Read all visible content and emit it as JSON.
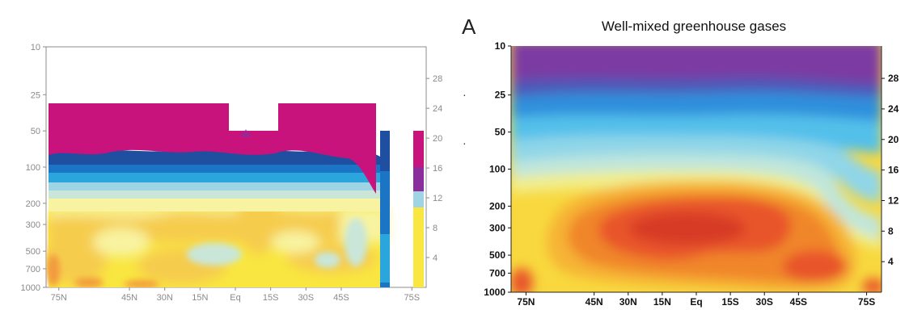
{
  "chart_data": [
    {
      "type": "heatmap",
      "panel": "left",
      "title": "",
      "xlabel": "",
      "ylabel": "",
      "x_ticks": [
        "75N",
        "45N",
        "30N",
        "15N",
        "Eq",
        "15S",
        "30S",
        "45S",
        "75S"
      ],
      "x_tick_lat": [
        75,
        45,
        30,
        15,
        0,
        -15,
        -30,
        -45,
        -75
      ],
      "y_ticks_left": [
        "10",
        "25",
        "50",
        "100",
        "200",
        "300",
        "500",
        "700",
        "1000"
      ],
      "y_tick_hpa": [
        10,
        25,
        50,
        100,
        200,
        300,
        500,
        700,
        1000
      ],
      "y_ticks_right": [
        "28",
        "24",
        "20",
        "16",
        "12",
        "8",
        "4"
      ],
      "y_right_km": [
        28,
        24,
        20,
        16,
        12,
        8,
        4
      ],
      "xlim": [
        78,
        -78
      ],
      "ylim_hpa": [
        10,
        1000
      ],
      "y_scale": "log",
      "colors": {
        "magenta": "#c8137d",
        "purple": "#8a2e9e",
        "navy": "#1f4fa0",
        "blue": "#1c74c4",
        "sky": "#2aa6dc",
        "light_blue": "#9fd4e4",
        "pale_cyan": "#c9e6d9",
        "pale_yellow": "#f8f3a0",
        "yellow": "#f9e640",
        "gold": "#f6cc4d",
        "orange": "#f29a3c"
      }
    },
    {
      "type": "heatmap",
      "panel": "right",
      "panel_label": "A",
      "title": "Well-mixed greenhouse gases",
      "xlabel": "",
      "ylabel": "",
      "x_ticks": [
        "75N",
        "45N",
        "30N",
        "15N",
        "Eq",
        "15S",
        "30S",
        "45S",
        "75S"
      ],
      "x_tick_lat": [
        75,
        45,
        30,
        15,
        0,
        -15,
        -30,
        -45,
        -75
      ],
      "y_ticks_left": [
        "10",
        "25",
        "50",
        "100",
        "200",
        "300",
        "500",
        "700",
        "1000"
      ],
      "y_tick_hpa": [
        10,
        25,
        50,
        100,
        200,
        300,
        500,
        700,
        1000
      ],
      "y_ticks_right": [
        "28",
        "24",
        "20",
        "16",
        "12",
        "8",
        "4"
      ],
      "y_right_km": [
        28,
        24,
        20,
        16,
        12,
        8,
        4
      ],
      "xlim": [
        78,
        -78
      ],
      "ylim_hpa": [
        10,
        1000
      ],
      "y_scale": "log",
      "colors": {
        "purple": "#7c3aa2",
        "indigo": "#4d59b8",
        "blue": "#2f8fdc",
        "sky": "#53c0ea",
        "cyan": "#8fd6e8",
        "aqua": "#bfe6dc",
        "pale_yellow": "#f1ee8c",
        "yellow": "#f8d83e",
        "gold": "#f6b436",
        "orange": "#f0862c",
        "red_orange": "#e8552a",
        "red": "#d73b26"
      }
    }
  ]
}
